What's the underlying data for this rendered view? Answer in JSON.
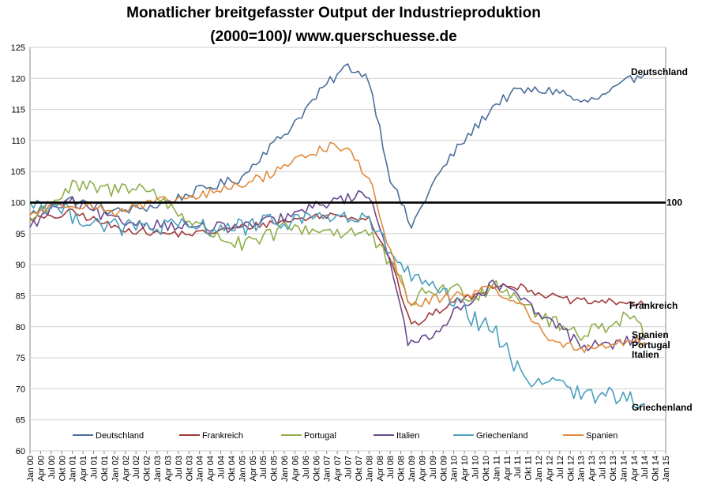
{
  "chart_data": {
    "type": "line",
    "title_line1": "Monatlicher breitgefasster Output der Industrieproduktion",
    "title_line2": "(2000=100)/ www.querschuesse.de",
    "ylim": [
      60,
      125
    ],
    "ytick_step": 5,
    "x_start": "2000-01",
    "x_end": "2015-01",
    "x_ticks": [
      "Jan 00",
      "Apr 00",
      "Jul 00",
      "Okt 00",
      "Jan 01",
      "Apr 01",
      "Jul 01",
      "Okt 01",
      "Jan 02",
      "Apr 02",
      "Jul 02",
      "Okt 02",
      "Jan 03",
      "Apr 03",
      "Jul 03",
      "Okt 03",
      "Jan 04",
      "Apr 04",
      "Jul 04",
      "Okt 04",
      "Jan 05",
      "Apr 05",
      "Jul 05",
      "Okt 05",
      "Jan 06",
      "Apr 06",
      "Jul 06",
      "Okt 06",
      "Jan 07",
      "Apr 07",
      "Jul 07",
      "Okt 07",
      "Jan 08",
      "Apr 08",
      "Jul 08",
      "Okt 08",
      "Jan 09",
      "Apr 09",
      "Jul 09",
      "Okt 09",
      "Jan 10",
      "Apr 10",
      "Jul 10",
      "Okt 10",
      "Jan 11",
      "Apr 11",
      "Jul 11",
      "Okt 11",
      "Jan 12",
      "Apr 12",
      "Jul 12",
      "Okt 12",
      "Jan 13",
      "Apr 13",
      "Jul 13",
      "Okt 13",
      "Jan 14",
      "Apr 14",
      "Jul 14",
      "Okt 14",
      "Jan 15"
    ],
    "reference_line": {
      "value": 100,
      "label": "100"
    },
    "series": [
      {
        "name": "Deutschland",
        "end_label": "Deutschland",
        "color": "#4a6f9c",
        "anchors": [
          [
            0,
            98
          ],
          [
            6,
            100
          ],
          [
            12,
            100.5
          ],
          [
            24,
            98.5
          ],
          [
            36,
            99.5
          ],
          [
            48,
            102
          ],
          [
            60,
            104
          ],
          [
            66,
            108
          ],
          [
            72,
            111
          ],
          [
            78,
            115
          ],
          [
            84,
            119
          ],
          [
            90,
            122
          ],
          [
            96,
            120
          ],
          [
            102,
            104
          ],
          [
            108,
            96
          ],
          [
            114,
            103
          ],
          [
            120,
            108
          ],
          [
            126,
            112
          ],
          [
            132,
            116
          ],
          [
            138,
            118
          ],
          [
            144,
            118
          ],
          [
            150,
            118
          ],
          [
            156,
            116
          ],
          [
            162,
            117
          ],
          [
            168,
            119
          ],
          [
            172,
            120.5
          ],
          [
            174,
            120.7
          ]
        ],
        "noise": 0.8
      },
      {
        "name": "Frankreich",
        "end_label": "Frankreich",
        "color": "#a0393a",
        "anchors": [
          [
            0,
            97.5
          ],
          [
            6,
            97.5
          ],
          [
            12,
            98.5
          ],
          [
            24,
            96
          ],
          [
            36,
            95
          ],
          [
            48,
            95
          ],
          [
            60,
            96
          ],
          [
            72,
            97
          ],
          [
            84,
            98
          ],
          [
            96,
            97.5
          ],
          [
            102,
            91
          ],
          [
            108,
            80
          ],
          [
            114,
            82
          ],
          [
            120,
            84
          ],
          [
            126,
            85
          ],
          [
            132,
            87
          ],
          [
            138,
            86.5
          ],
          [
            144,
            85.5
          ],
          [
            150,
            84.5
          ],
          [
            156,
            84
          ],
          [
            162,
            84
          ],
          [
            168,
            84
          ],
          [
            174,
            83.5
          ]
        ],
        "noise": 0.6
      },
      {
        "name": "Portugal",
        "end_label": "Portugal",
        "color": "#8fae4a",
        "anchors": [
          [
            0,
            97
          ],
          [
            6,
            100
          ],
          [
            12,
            102.5
          ],
          [
            24,
            102
          ],
          [
            30,
            103
          ],
          [
            36,
            101
          ],
          [
            48,
            96
          ],
          [
            60,
            93
          ],
          [
            66,
            94
          ],
          [
            72,
            96
          ],
          [
            84,
            95.5
          ],
          [
            96,
            95
          ],
          [
            102,
            90
          ],
          [
            108,
            84
          ],
          [
            114,
            86
          ],
          [
            120,
            86
          ],
          [
            126,
            85
          ],
          [
            132,
            87
          ],
          [
            138,
            85
          ],
          [
            144,
            82
          ],
          [
            150,
            80
          ],
          [
            156,
            79
          ],
          [
            162,
            80
          ],
          [
            168,
            81.5
          ],
          [
            172,
            81.5
          ],
          [
            174,
            78
          ]
        ],
        "noise": 1.3
      },
      {
        "name": "Italien",
        "end_label": "Italien",
        "color": "#6a4a8e",
        "anchors": [
          [
            0,
            96
          ],
          [
            6,
            99
          ],
          [
            12,
            100
          ],
          [
            24,
            97
          ],
          [
            36,
            96.5
          ],
          [
            48,
            96
          ],
          [
            60,
            96
          ],
          [
            72,
            97.5
          ],
          [
            84,
            100
          ],
          [
            96,
            101.5
          ],
          [
            102,
            91
          ],
          [
            107,
            77
          ],
          [
            114,
            79
          ],
          [
            120,
            82
          ],
          [
            126,
            85
          ],
          [
            132,
            87
          ],
          [
            138,
            85
          ],
          [
            144,
            82
          ],
          [
            150,
            80
          ],
          [
            156,
            77
          ],
          [
            162,
            77
          ],
          [
            168,
            77.5
          ],
          [
            174,
            78
          ]
        ],
        "noise": 0.9
      },
      {
        "name": "Griechenland",
        "end_label": "Griechenland",
        "color": "#4a9fbe",
        "anchors": [
          [
            0,
            100
          ],
          [
            6,
            99.5
          ],
          [
            12,
            98
          ],
          [
            18,
            97
          ],
          [
            24,
            96
          ],
          [
            36,
            96
          ],
          [
            48,
            96
          ],
          [
            60,
            96
          ],
          [
            72,
            97
          ],
          [
            84,
            98
          ],
          [
            96,
            97
          ],
          [
            102,
            92
          ],
          [
            108,
            88
          ],
          [
            114,
            86
          ],
          [
            120,
            84
          ],
          [
            126,
            81
          ],
          [
            132,
            79
          ],
          [
            138,
            73
          ],
          [
            144,
            71
          ],
          [
            150,
            72
          ],
          [
            156,
            68.5
          ],
          [
            162,
            69
          ],
          [
            168,
            68.8
          ],
          [
            174,
            67.5
          ]
        ],
        "noise": 1.5
      },
      {
        "name": "Spanien",
        "end_label": "Spanien",
        "color": "#e08a3c",
        "anchors": [
          [
            0,
            98
          ],
          [
            6,
            99.5
          ],
          [
            12,
            100
          ],
          [
            24,
            98.5
          ],
          [
            36,
            100
          ],
          [
            48,
            101
          ],
          [
            60,
            103
          ],
          [
            66,
            104
          ],
          [
            72,
            106
          ],
          [
            84,
            109
          ],
          [
            90,
            108.5
          ],
          [
            96,
            104
          ],
          [
            102,
            92
          ],
          [
            108,
            83
          ],
          [
            114,
            84.5
          ],
          [
            120,
            85
          ],
          [
            126,
            85.5
          ],
          [
            132,
            86
          ],
          [
            138,
            84
          ],
          [
            144,
            80
          ],
          [
            150,
            77
          ],
          [
            156,
            76.5
          ],
          [
            162,
            77
          ],
          [
            168,
            77.5
          ],
          [
            174,
            77.5
          ]
        ],
        "noise": 0.8
      }
    ]
  }
}
